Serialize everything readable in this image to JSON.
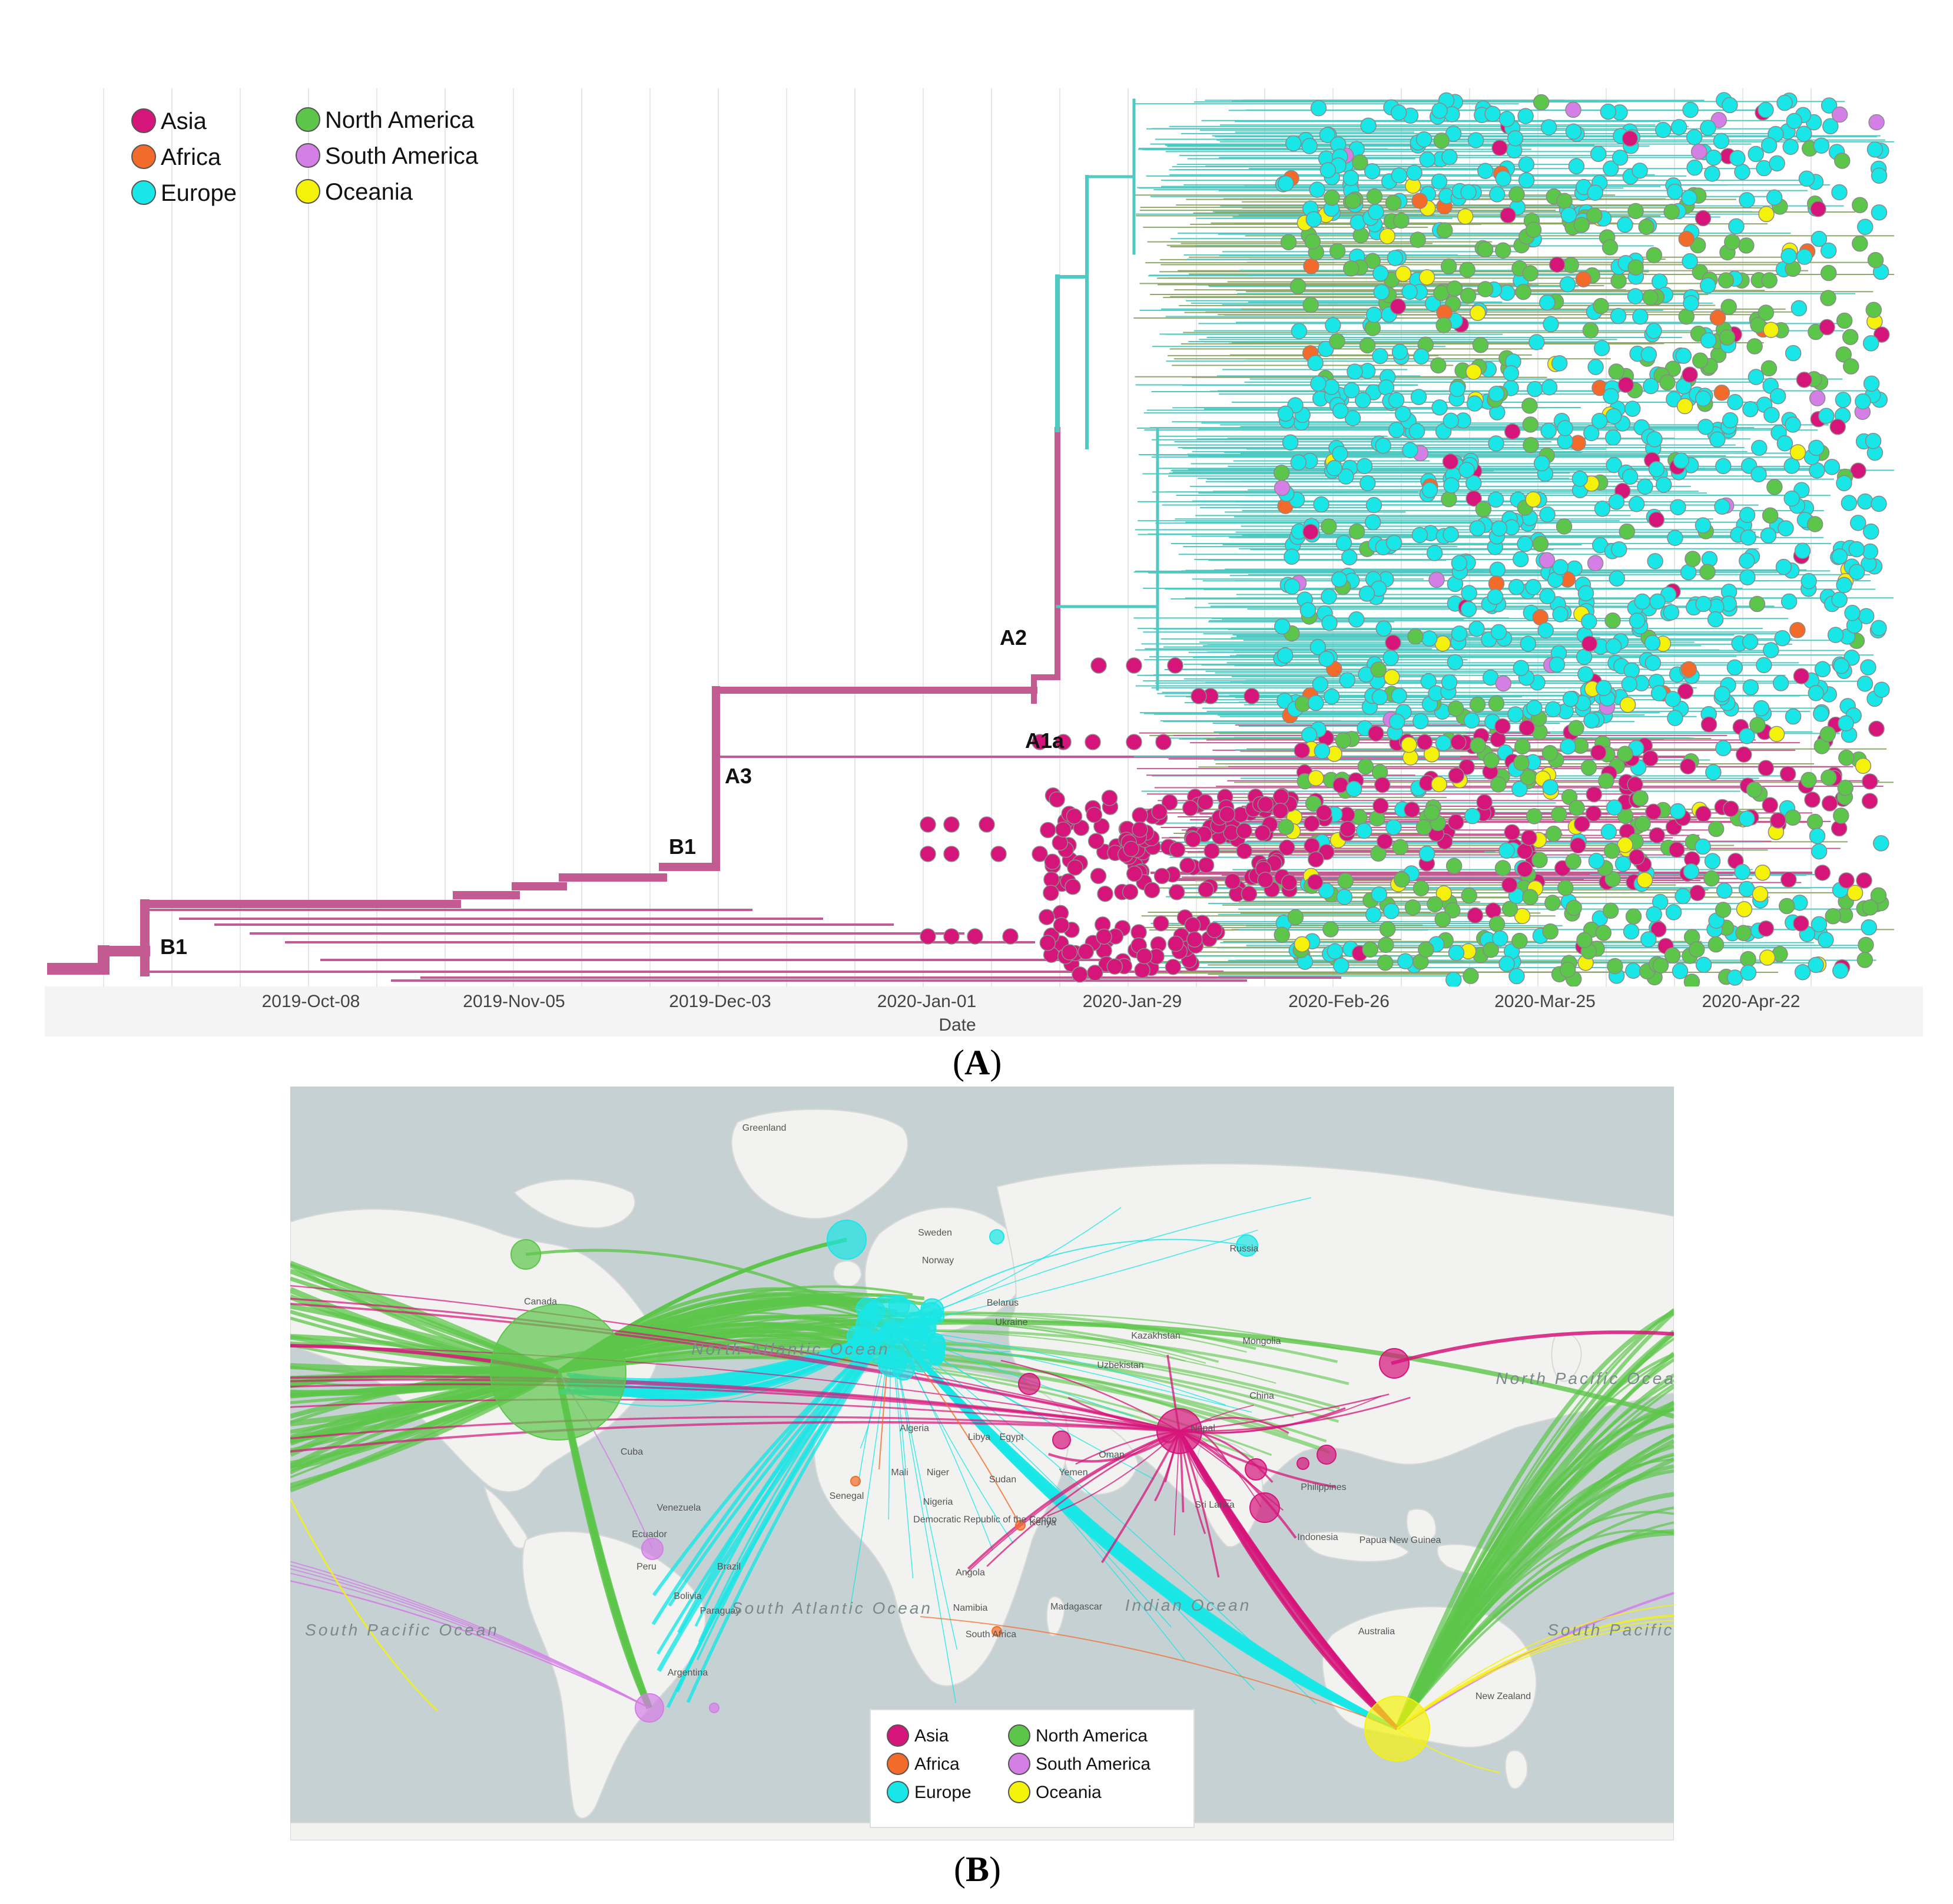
{
  "panel_a": {
    "caption_open": "(",
    "caption_letter": "A",
    "caption_close": ")",
    "xlabel": "Date",
    "ticks": [
      "2019-Oct-08",
      "2019-Nov-05",
      "2019-Dec-03",
      "2020-Jan-01",
      "2020-Jan-29",
      "2020-Feb-26",
      "2020-Mar-25",
      "2020-Apr-22"
    ],
    "clade_labels": [
      "B1",
      "B1",
      "A3",
      "A1a",
      "A2"
    ],
    "legend": [
      {
        "label": "Asia",
        "color": "#d6157a"
      },
      {
        "label": "Africa",
        "color": "#f26b2a"
      },
      {
        "label": "Europe",
        "color": "#19e6e6"
      },
      {
        "label": "North America",
        "color": "#5cc64a"
      },
      {
        "label": "South America",
        "color": "#d47fe6"
      },
      {
        "label": "Oceania",
        "color": "#f5f20a"
      }
    ]
  },
  "panel_b": {
    "caption_open": "(",
    "caption_letter": "B",
    "caption_close": ")",
    "place_labels": [
      "Greenland",
      "Canada",
      "Sweden",
      "Norway",
      "Belarus",
      "Ukraine",
      "Russia",
      "Kazakhstan",
      "Mongolia",
      "Uzbekistan",
      "China",
      "Algeria",
      "Libya",
      "Egypt",
      "Mali",
      "Niger",
      "Nigeria",
      "Sudan",
      "Senegal",
      "Oman",
      "Yemen",
      "Cuba",
      "Venezuela",
      "Ecuador",
      "Peru",
      "Bolivia",
      "Paraguay",
      "Brazil",
      "Argentina",
      "Democratic Republic of the Congo",
      "Kenya",
      "Angola",
      "Namibia",
      "South Africa",
      "Madagascar",
      "Sri Lanka",
      "Indonesia",
      "Papua New Guinea",
      "Australia",
      "New Zealand",
      "Philippines",
      "Nepal"
    ],
    "ocean_labels": [
      "South Pacific Ocean",
      "South Atlantic Ocean",
      "Indian Ocean",
      "South Pacific Ocean",
      "North Atlantic Ocean",
      "North Pacific Ocean"
    ],
    "legend": [
      {
        "label": "Asia",
        "color": "#d6157a"
      },
      {
        "label": "Africa",
        "color": "#f26b2a"
      },
      {
        "label": "Europe",
        "color": "#19e6e6"
      },
      {
        "label": "North America",
        "color": "#5cc64a"
      },
      {
        "label": "South America",
        "color": "#d47fe6"
      },
      {
        "label": "Oceania",
        "color": "#f5f20a"
      }
    ]
  }
}
